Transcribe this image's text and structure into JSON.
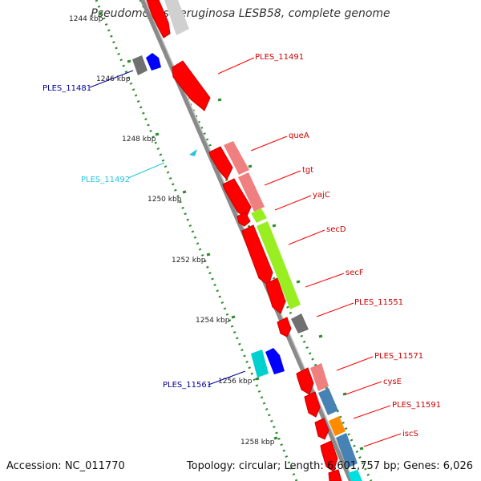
{
  "title": "Pseudomonas aeruginosa LESB58, complete genome",
  "accession": "Accession: NC_011770",
  "topology": "Topology: circular; Length: 6,601,757 bp; Genes: 6,026",
  "colors": {
    "backbone": "#8a8a8a",
    "dotted": "#2e8b2e",
    "red": "#ff0000",
    "pink": "#f08080",
    "green": "#99ee22",
    "grey": "#707070",
    "blue": "#0000ff",
    "cyan": "#00d0d0",
    "steel": "#4682b4",
    "orange": "#ff8c00",
    "label_red": "#cc0000",
    "label_blue": "#000099",
    "label_cyan": "#22c4e0"
  },
  "ticks": [
    "1244 kbp",
    "1246 kbp",
    "1248 kbp",
    "1250 kbp",
    "1252 kbp",
    "1254 kbp",
    "1256 kbp",
    "1258 kbp"
  ],
  "gene_labels": [
    {
      "id": "ples-11491",
      "text": "PLES_11491",
      "color": "label_red"
    },
    {
      "id": "quea",
      "text": "queA",
      "color": "label_red"
    },
    {
      "id": "tgt",
      "text": "tgt",
      "color": "label_red"
    },
    {
      "id": "yajc",
      "text": "yajC",
      "color": "label_red"
    },
    {
      "id": "secd",
      "text": "secD",
      "color": "label_red"
    },
    {
      "id": "secf",
      "text": "secF",
      "color": "label_red"
    },
    {
      "id": "ples-11551",
      "text": "PLES_11551",
      "color": "label_red"
    },
    {
      "id": "ples-11571",
      "text": "PLES_11571",
      "color": "label_red"
    },
    {
      "id": "cyse",
      "text": "cysE",
      "color": "label_red"
    },
    {
      "id": "ples-11591",
      "text": "PLES_11591",
      "color": "label_red"
    },
    {
      "id": "iscs",
      "text": "iscS",
      "color": "label_red"
    },
    {
      "id": "ples-11481",
      "text": "PLES_11481",
      "color": "label_blue"
    },
    {
      "id": "ples-11492",
      "text": "PLES_11492",
      "color": "label_cyan"
    },
    {
      "id": "ples-11561",
      "text": "PLES_11561",
      "color": "label_blue"
    }
  ]
}
